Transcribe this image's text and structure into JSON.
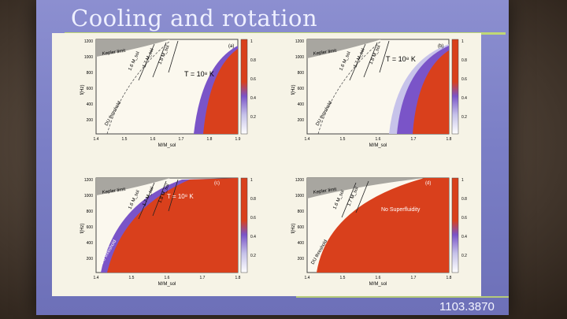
{
  "slide": {
    "title": "Cooling and rotation",
    "reference": "1103.3870"
  },
  "colors": {
    "superfluid": "#d9401c",
    "gap_band": "#7a54c8",
    "keplerian": "#a8a6a0",
    "slide_bg": "#7b7fc6",
    "accent_rule": "#c7e06a"
  },
  "panels": [
    {
      "tag": "(a)",
      "annotation": "T = 10⁸ K",
      "y_label": "f(Hz)",
      "x_label": "M/M_sol",
      "y_ticks": [
        "1200",
        "1000",
        "800",
        "600",
        "400",
        "200"
      ],
      "x_ticks": [
        "1.4",
        "1.5",
        "1.6",
        "1.7",
        "1.8",
        "1.9"
      ],
      "colorbar_ticks": [
        "1",
        "0.8",
        "0.6",
        "0.4",
        "0.2"
      ],
      "curve_labels": [
        "Kepler limit",
        "1.6 M_sol",
        "1.7 M_sol",
        "1.8 M_sol",
        "DU threshold"
      ]
    },
    {
      "tag": "(b)",
      "annotation": "T = 10⁸ K",
      "y_label": "f(Hz)",
      "x_label": "M/M_sol",
      "y_ticks": [
        "1200",
        "1000",
        "800",
        "600",
        "400",
        "200"
      ],
      "x_ticks": [
        "1.4",
        "1.5",
        "1.6",
        "1.7",
        "1.8"
      ],
      "colorbar_ticks": [
        "1",
        "0.8",
        "0.6",
        "0.4",
        "0.2"
      ],
      "curve_labels": [
        "Kepler limit",
        "1.6 M_sol",
        "1.7 M_sol",
        "1.8 M_sol",
        "DU threshold"
      ]
    },
    {
      "tag": "(c)",
      "annotation": "T = 10⁸ K",
      "y_label": "f(Hz)",
      "x_label": "M/M_sol",
      "y_ticks": [
        "1200",
        "1000",
        "800",
        "600",
        "400",
        "200"
      ],
      "x_ticks": [
        "1.4",
        "1.5",
        "1.6",
        "1.7",
        "1.8"
      ],
      "colorbar_ticks": [
        "1",
        "0.8",
        "0.6",
        "0.4",
        "0.2"
      ],
      "curve_labels": [
        "Kepler limit",
        "1.6 M_sol",
        "1.7 M_sol",
        "1.8 M_sol",
        "DU threshold"
      ]
    },
    {
      "tag": "(d)",
      "annotation": "No Superfluidity",
      "y_label": "f(Hz)",
      "x_label": "M/M_sol",
      "y_ticks": [
        "1200",
        "1000",
        "800",
        "600",
        "400",
        "200"
      ],
      "x_ticks": [
        "1.4",
        "1.5",
        "1.6",
        "1.7",
        "1.8"
      ],
      "colorbar_ticks": [
        "1",
        "0.8",
        "0.6",
        "0.4",
        "0.2"
      ],
      "curve_labels": [
        "Kepler limit",
        "1.6 M_sol",
        "1.7 M_sol",
        "DU threshold"
      ]
    }
  ]
}
